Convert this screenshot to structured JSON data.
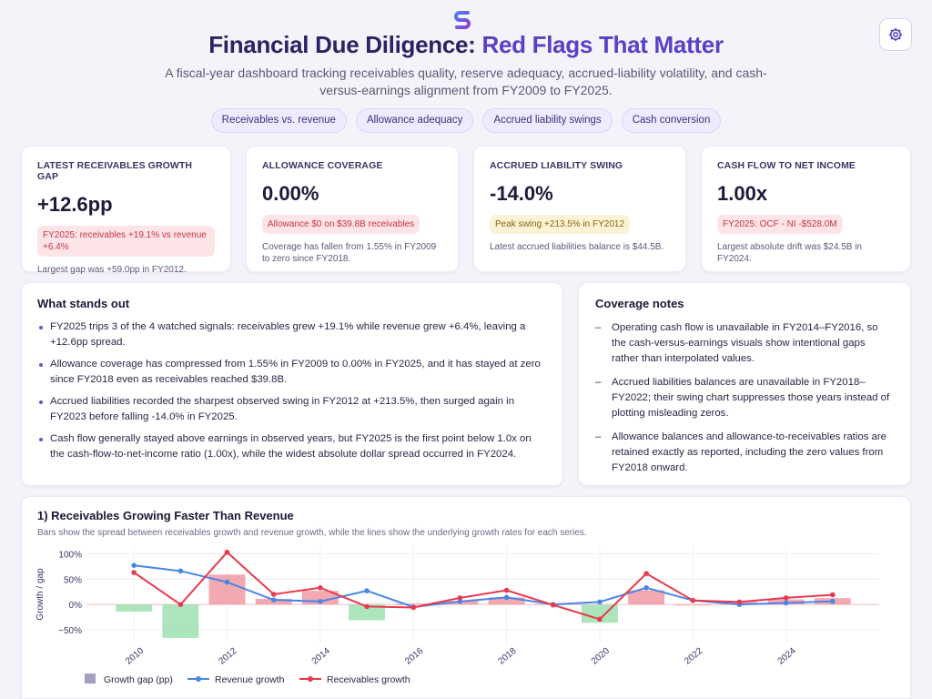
{
  "header": {
    "title_main": "Financial Due Diligence: ",
    "title_accent": "Red Flags That Matter",
    "subtitle": "A fiscal-year dashboard tracking receivables quality, reserve adequacy, accrued-liability volatility, and cash-versus-earnings alignment from FY2009 to FY2025.",
    "logo_icon": "app-logo-icon",
    "settings_icon": "gear-icon"
  },
  "pills": [
    "Receivables vs. revenue",
    "Allowance adequacy",
    "Accrued liability swings",
    "Cash conversion"
  ],
  "kpis": [
    {
      "label": "LATEST RECEIVABLES GROWTH GAP",
      "value": "+12.6pp",
      "badge": "FY2025: receivables +19.1% vs revenue +6.4%",
      "badge_tone": "red",
      "note": "Largest gap was +59.0pp in FY2012."
    },
    {
      "label": "ALLOWANCE COVERAGE",
      "value": "0.00%",
      "badge": "Allowance $0 on $39.8B receivables",
      "badge_tone": "red",
      "note": "Coverage has fallen from 1.55% in FY2009 to zero since FY2018."
    },
    {
      "label": "ACCRUED LIABILITY SWING",
      "value": "-14.0%",
      "badge": "Peak swing +213.5% in FY2012",
      "badge_tone": "amber",
      "note": "Latest accrued liabilities balance is $44.5B."
    },
    {
      "label": "CASH FLOW TO NET INCOME",
      "value": "1.00x",
      "badge": "FY2025: OCF - NI -$528.0M",
      "badge_tone": "red",
      "note": "Largest absolute drift was $24.5B in FY2024."
    }
  ],
  "highlights": {
    "title": "What stands out",
    "items": [
      "FY2025 trips 3 of the 4 watched signals: receivables grew +19.1% while revenue grew +6.4%, leaving a +12.6pp spread.",
      "Allowance coverage has compressed from 1.55% in FY2009 to 0.00% in FY2025, and it has stayed at zero since FY2018 even as receivables reached $39.8B.",
      "Accrued liabilities recorded the sharpest observed swing in FY2012 at +213.5%, then surged again in FY2023 before falling -14.0% in FY2025.",
      "Cash flow generally stayed above earnings in observed years, but FY2025 is the first point below 1.0x on the cash-flow-to-net-income ratio (1.00x), while the widest absolute dollar spread occurred in FY2024."
    ]
  },
  "coverage": {
    "title": "Coverage notes",
    "items": [
      "Operating cash flow is unavailable in FY2014–FY2016, so the cash-versus-earnings visuals show intentional gaps rather than interpolated values.",
      "Accrued liabilities balances are unavailable in FY2018–FY2022; their swing chart suppresses those years instead of plotting misleading zeros.",
      "Allowance balances and allowance-to-receivables ratios are retained exactly as reported, including the zero values from FY2018 onward."
    ]
  },
  "chart_section": {
    "title": "1) Receivables Growing Faster Than Revenue",
    "subtitle": "Bars show the spread between receivables growth and revenue growth, while the lines show the underlying growth rates for each series."
  },
  "chart_data": {
    "type": "bar",
    "title": "1) Receivables Growing Faster Than Revenue",
    "ylabel": "Growth / gap",
    "xlabel": "",
    "ylim": [
      -75,
      115
    ],
    "yticks": [
      -50,
      0,
      50,
      100
    ],
    "ytick_labels": [
      "−50%",
      "0%",
      "50%",
      "100%"
    ],
    "xlim": [
      2009,
      2026
    ],
    "xticks": [
      2010,
      2012,
      2014,
      2016,
      2018,
      2020,
      2022,
      2024
    ],
    "x": [
      2010,
      2011,
      2012,
      2013,
      2014,
      2015,
      2016,
      2017,
      2018,
      2019,
      2020,
      2021,
      2022,
      2023,
      2024,
      2025
    ],
    "series": [
      {
        "name": "Growth gap (pp)",
        "kind": "bar",
        "color": "#f2a0a8",
        "neg_color": "#a3e2b5",
        "values": [
          -14,
          -66,
          59,
          11,
          27,
          -31,
          2,
          7,
          14,
          1,
          -36,
          28,
          0,
          5,
          10,
          12.6
        ]
      },
      {
        "name": "Revenue growth",
        "kind": "line",
        "color": "#4a86e8",
        "values": [
          77,
          66,
          44,
          9,
          6,
          27,
          -5,
          6,
          14,
          0,
          5,
          33,
          8,
          0,
          3,
          6.4
        ]
      },
      {
        "name": "Receivables growth",
        "kind": "line",
        "color": "#e8394d",
        "values": [
          63,
          0,
          103,
          20,
          33,
          -4,
          -6,
          13,
          28,
          -1,
          -29,
          61,
          8,
          5,
          13,
          19.1
        ]
      }
    ],
    "legend_position": "bottom-left",
    "grid": true
  }
}
